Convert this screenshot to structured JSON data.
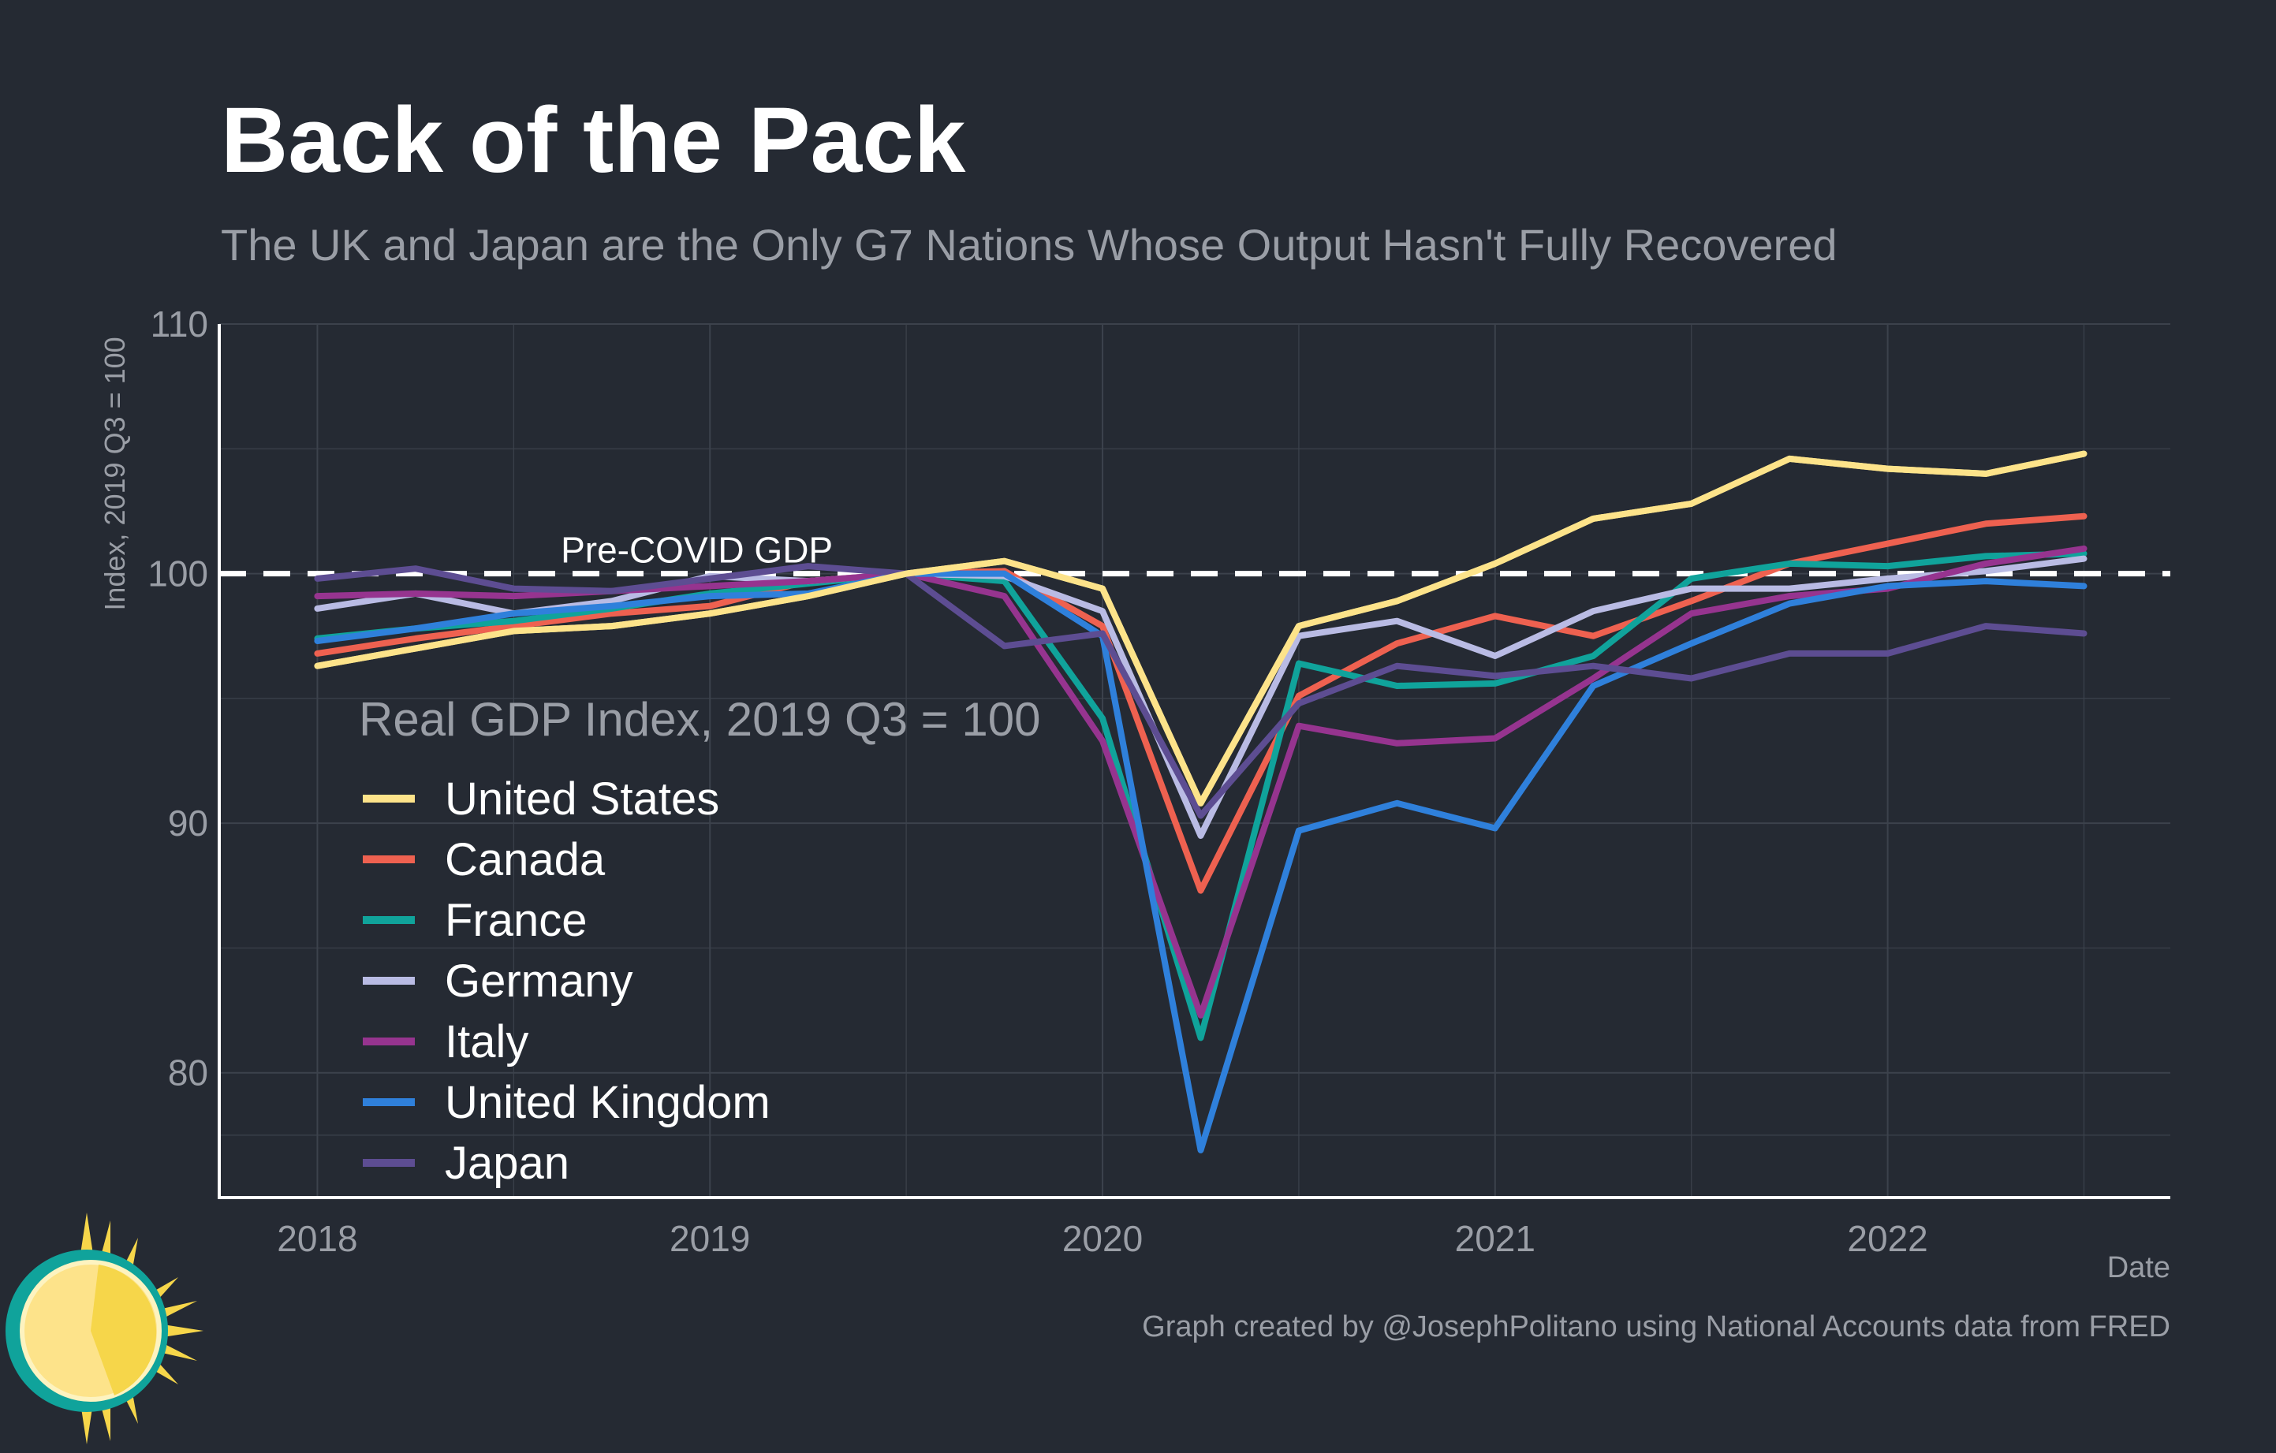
{
  "title": "Back of the Pack",
  "subtitle": "The UK and Japan are the Only G7 Nations Whose Output Hasn't Fully Recovered",
  "caption": "Graph created by @JosephPolitano using National Accounts data from FRED",
  "colors": {
    "background": "#252a33",
    "grid": "#3c424c",
    "axis": "#ffffff",
    "muted": "#9a9ea6"
  },
  "chart_data": {
    "type": "line",
    "xlabel": "Date",
    "ylabel": "Index, 2019 Q3 = 100",
    "xlim": [
      2017.75,
      2022.72
    ],
    "ylim": [
      75,
      110
    ],
    "x_ticks": [
      2018,
      2019,
      2020,
      2021,
      2022
    ],
    "x_tick_labels": [
      "2018",
      "2019",
      "2020",
      "2021",
      "2022"
    ],
    "y_ticks": [
      80,
      90,
      100,
      110
    ],
    "y_tick_labels": [
      "80",
      "90",
      "100",
      "110"
    ],
    "legend_title": "Real GDP Index, 2019 Q3 = 100",
    "legend_position": "inside-left",
    "reference_line": {
      "y": 100,
      "label": "Pre-COVID GDP",
      "style": "dashed"
    },
    "x": [
      2018.0,
      2018.25,
      2018.5,
      2018.75,
      2019.0,
      2019.25,
      2019.5,
      2019.75,
      2020.0,
      2020.25,
      2020.5,
      2020.75,
      2021.0,
      2021.25,
      2021.5,
      2021.75,
      2022.0,
      2022.25,
      2022.5
    ],
    "series": [
      {
        "name": "United States",
        "color": "#fde38a",
        "values": [
          96.3,
          97.0,
          97.7,
          97.9,
          98.4,
          99.1,
          100.0,
          100.5,
          99.4,
          90.8,
          97.9,
          98.9,
          100.4,
          102.2,
          102.8,
          104.6,
          104.2,
          104.0,
          104.8
        ]
      },
      {
        "name": "Canada",
        "color": "#ee6150",
        "values": [
          96.8,
          97.4,
          97.9,
          98.4,
          98.7,
          99.7,
          100.0,
          100.1,
          97.9,
          87.3,
          95.1,
          97.2,
          98.3,
          97.5,
          98.9,
          100.4,
          101.2,
          102.0,
          102.3
        ]
      },
      {
        "name": "France",
        "color": "#10a39b",
        "values": [
          97.4,
          97.8,
          98.1,
          98.6,
          99.2,
          99.6,
          100.0,
          99.7,
          94.2,
          81.4,
          96.4,
          95.5,
          95.6,
          96.7,
          99.8,
          100.4,
          100.3,
          100.7,
          100.8
        ]
      },
      {
        "name": "Germany",
        "color": "#b9bbe4",
        "values": [
          98.6,
          99.2,
          98.4,
          98.9,
          99.9,
          99.7,
          100.0,
          99.9,
          98.5,
          89.5,
          97.5,
          98.1,
          96.7,
          98.5,
          99.4,
          99.4,
          99.8,
          100.1,
          100.6
        ]
      },
      {
        "name": "Italy",
        "color": "#96348f",
        "values": [
          99.1,
          99.2,
          99.1,
          99.3,
          99.5,
          99.7,
          100.0,
          99.1,
          93.3,
          82.3,
          93.9,
          93.2,
          93.4,
          95.8,
          98.4,
          99.1,
          99.4,
          100.4,
          101.0
        ]
      },
      {
        "name": "United Kingdom",
        "color": "#2f80db",
        "values": [
          97.3,
          97.8,
          98.4,
          98.7,
          99.1,
          99.2,
          100.0,
          100.0,
          97.5,
          76.9,
          89.7,
          90.8,
          89.8,
          95.5,
          97.2,
          98.8,
          99.5,
          99.7,
          99.5
        ]
      },
      {
        "name": "Japan",
        "color": "#5d4d92",
        "values": [
          99.8,
          100.2,
          99.4,
          99.3,
          99.8,
          100.3,
          100.0,
          97.1,
          97.6,
          90.3,
          94.8,
          96.3,
          95.9,
          96.3,
          95.8,
          96.8,
          96.8,
          97.9,
          97.6
        ]
      }
    ]
  }
}
